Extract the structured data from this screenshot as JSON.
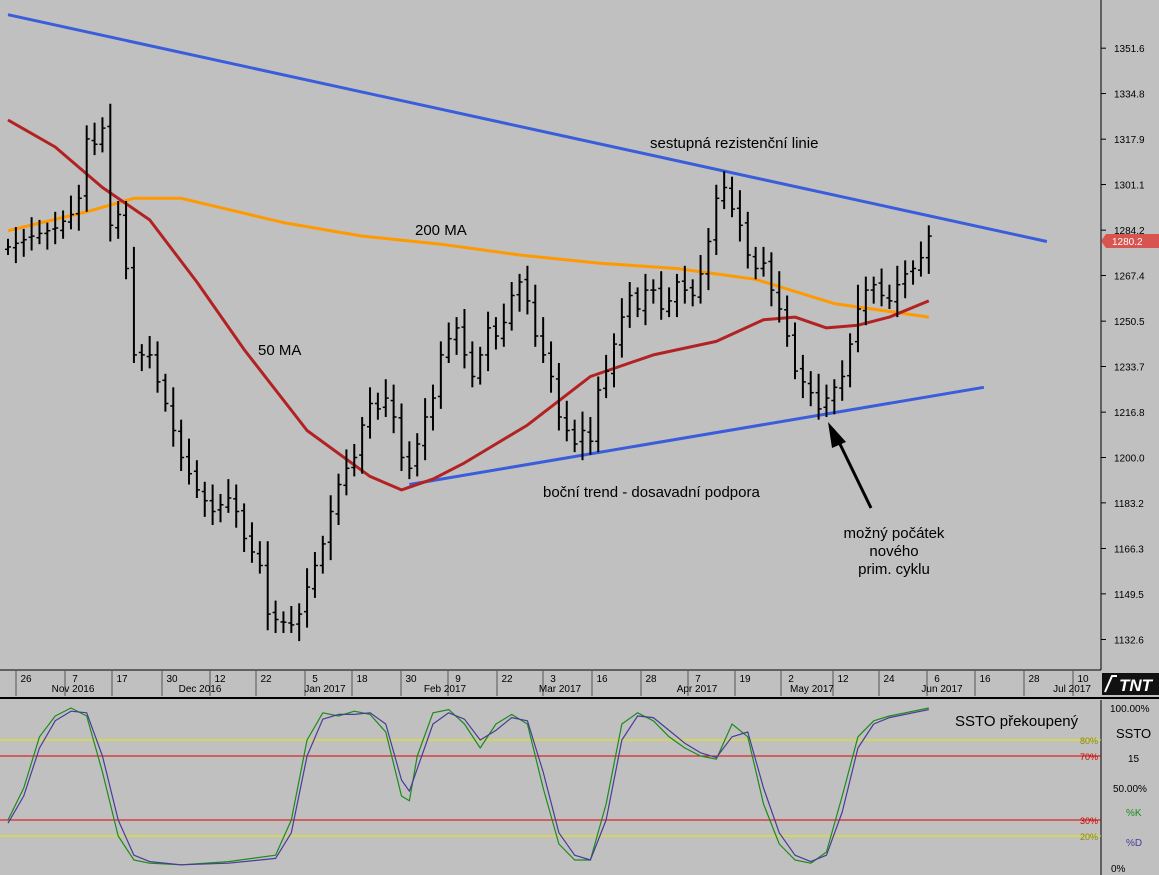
{
  "chart_data": [
    {
      "type": "ohlc",
      "price_axis": {
        "ylim": [
          1125,
          1365
        ],
        "ticks": [
          "1351.6",
          "1334.8",
          "1317.9",
          "1301.1",
          "1284.2",
          "1267.4",
          "1250.5",
          "1233.7",
          "1216.8",
          "1200.0",
          "1183.2",
          "1166.3",
          "1149.5",
          "1132.6"
        ],
        "current_price": "1280.2"
      },
      "time_axis": {
        "day_ticks": [
          "26",
          "7",
          "17",
          "30",
          "12",
          "22",
          "5",
          "18",
          "30",
          "9",
          "22",
          "3",
          "16",
          "28",
          "7",
          "19",
          "2",
          "12",
          "24",
          "6",
          "16",
          "28",
          "10"
        ],
        "month_labels": [
          "Nov 2016",
          "Dec 2016",
          "Jan 2017",
          "Feb 2017",
          "Mar 2017",
          "Apr 2017",
          "May 2017",
          "Jun 2017",
          "Jul 2017"
        ],
        "logo": "TNT"
      },
      "price_path": [
        [
          0,
          1278
        ],
        [
          3,
          1282
        ],
        [
          6,
          1285
        ],
        [
          8,
          1290
        ],
        [
          9,
          1296
        ],
        [
          10,
          1318
        ],
        [
          11,
          1316
        ],
        [
          12,
          1322
        ],
        [
          13,
          1286
        ],
        [
          14,
          1290
        ],
        [
          15,
          1270
        ],
        [
          16,
          1238
        ],
        [
          18,
          1238
        ],
        [
          19,
          1228
        ],
        [
          20,
          1220
        ],
        [
          22,
          1200
        ],
        [
          24,
          1188
        ],
        [
          26,
          1180
        ],
        [
          28,
          1185
        ],
        [
          29,
          1180
        ],
        [
          30,
          1170
        ],
        [
          32,
          1160
        ],
        [
          33,
          1142
        ],
        [
          34,
          1140
        ],
        [
          36,
          1138
        ],
        [
          37,
          1142
        ],
        [
          38,
          1152
        ],
        [
          39,
          1160
        ],
        [
          40,
          1168
        ],
        [
          41,
          1180
        ],
        [
          42,
          1190
        ],
        [
          43,
          1196
        ],
        [
          44,
          1200
        ],
        [
          45,
          1212
        ],
        [
          46,
          1220
        ],
        [
          47,
          1218
        ],
        [
          48,
          1222
        ],
        [
          49,
          1215
        ],
        [
          50,
          1200
        ],
        [
          51,
          1196
        ],
        [
          52,
          1205
        ],
        [
          53,
          1215
        ],
        [
          54,
          1222
        ],
        [
          55,
          1238
        ],
        [
          56,
          1244
        ],
        [
          57,
          1248
        ],
        [
          58,
          1238
        ],
        [
          59,
          1230
        ],
        [
          60,
          1238
        ],
        [
          61,
          1248
        ],
        [
          62,
          1245
        ],
        [
          63,
          1250
        ],
        [
          64,
          1260
        ],
        [
          65,
          1265
        ],
        [
          66,
          1258
        ],
        [
          67,
          1245
        ],
        [
          68,
          1238
        ],
        [
          69,
          1230
        ],
        [
          70,
          1215
        ],
        [
          71,
          1210
        ],
        [
          72,
          1205
        ],
        [
          73,
          1210
        ],
        [
          74,
          1206
        ],
        [
          75,
          1225
        ],
        [
          76,
          1232
        ],
        [
          77,
          1242
        ],
        [
          78,
          1252
        ],
        [
          79,
          1260
        ],
        [
          80,
          1255
        ],
        [
          81,
          1262
        ],
        [
          82,
          1262
        ],
        [
          83,
          1255
        ],
        [
          84,
          1258
        ],
        [
          85,
          1265
        ],
        [
          86,
          1262
        ],
        [
          87,
          1260
        ],
        [
          88,
          1268
        ],
        [
          89,
          1280
        ],
        [
          90,
          1296
        ],
        [
          91,
          1300
        ],
        [
          92,
          1292
        ],
        [
          93,
          1286
        ],
        [
          94,
          1275
        ],
        [
          95,
          1270
        ],
        [
          96,
          1272
        ],
        [
          97,
          1262
        ],
        [
          98,
          1255
        ],
        [
          99,
          1245
        ],
        [
          100,
          1232
        ],
        [
          101,
          1228
        ],
        [
          102,
          1224
        ],
        [
          103,
          1218
        ],
        [
          104,
          1222
        ],
        [
          105,
          1226
        ],
        [
          106,
          1230
        ],
        [
          107,
          1242
        ],
        [
          108,
          1255
        ],
        [
          109,
          1262
        ],
        [
          110,
          1264
        ],
        [
          111,
          1260
        ],
        [
          112,
          1258
        ],
        [
          113,
          1264
        ],
        [
          114,
          1268
        ],
        [
          115,
          1270
        ],
        [
          116,
          1274
        ],
        [
          117,
          1282
        ]
      ],
      "series": [
        {
          "name": "200 MA",
          "color": "#ff9900",
          "x": [
            0,
            10,
            16,
            22,
            35,
            45,
            55,
            65,
            75,
            85,
            95,
            105,
            117
          ],
          "y": [
            1284,
            1291,
            1296,
            1296,
            1287,
            1282,
            1279,
            1275,
            1272,
            1270,
            1266,
            1257,
            1252
          ]
        },
        {
          "name": "50 MA",
          "color": "#b22222",
          "x": [
            0,
            6,
            12,
            18,
            24,
            30,
            38,
            46,
            50,
            54,
            58,
            66,
            74,
            82,
            90,
            96,
            100,
            104,
            108,
            112,
            117
          ],
          "y": [
            1325,
            1315,
            1300,
            1288,
            1265,
            1240,
            1210,
            1193,
            1188,
            1192,
            1198,
            1212,
            1230,
            1238,
            1243,
            1251,
            1252,
            1248,
            1249,
            1252,
            1258
          ]
        }
      ],
      "trendlines": [
        {
          "name": "resistance",
          "color": "#3a5ddb",
          "x": [
            0,
            132
          ],
          "y": [
            1364,
            1280
          ]
        },
        {
          "name": "support",
          "color": "#3a5ddb",
          "x": [
            51,
            124
          ],
          "y": [
            1190,
            1226
          ]
        }
      ],
      "annotations": [
        {
          "text": "sestupná rezistenční linie"
        },
        {
          "text": "200 MA"
        },
        {
          "text": "50 MA"
        },
        {
          "text": "boční trend - dosavadní podpora"
        },
        {
          "lines": [
            "možný počátek",
            "nového",
            "prim. cyklu"
          ]
        }
      ]
    },
    {
      "type": "line",
      "title": "SSTO",
      "period": "15",
      "annotation": "SSTO překoupený",
      "ylim": [
        0,
        100
      ],
      "tick_labels": [
        "100.00%",
        "50.00%",
        "0%"
      ],
      "levels": [
        {
          "label": "80%",
          "value": 80,
          "color": "#e8e800"
        },
        {
          "label": "70%",
          "value": 70,
          "color": "#dd0000"
        },
        {
          "label": "30%",
          "value": 30,
          "color": "#dd0000"
        },
        {
          "label": "20%",
          "value": 20,
          "color": "#e8e800"
        }
      ],
      "series": [
        {
          "name": "%K",
          "color": "#1a8c1a",
          "x": [
            0,
            2,
            4,
            6,
            8,
            10,
            12,
            14,
            16,
            18,
            22,
            28,
            34,
            36,
            38,
            40,
            42,
            44,
            46,
            48,
            50,
            51,
            52,
            54,
            56,
            58,
            60,
            62,
            64,
            66,
            68,
            70,
            72,
            74,
            76,
            78,
            80,
            82,
            84,
            86,
            88,
            90,
            92,
            94,
            96,
            98,
            100,
            102,
            104,
            106,
            108,
            110,
            112,
            114,
            116,
            117
          ],
          "y": [
            30,
            50,
            82,
            95,
            100,
            95,
            60,
            20,
            5,
            3,
            2,
            4,
            8,
            30,
            80,
            97,
            95,
            98,
            96,
            85,
            45,
            42,
            70,
            97,
            99,
            90,
            75,
            90,
            96,
            90,
            50,
            15,
            5,
            5,
            40,
            90,
            97,
            92,
            82,
            75,
            70,
            68,
            90,
            82,
            40,
            15,
            5,
            3,
            10,
            45,
            82,
            92,
            95,
            97,
            99,
            100
          ]
        },
        {
          "name": "%D",
          "color": "#4a3a9a",
          "x": [
            0,
            2,
            4,
            6,
            8,
            10,
            12,
            14,
            16,
            18,
            22,
            28,
            34,
            36,
            38,
            40,
            42,
            44,
            46,
            48,
            50,
            51,
            52,
            54,
            56,
            58,
            60,
            62,
            64,
            66,
            68,
            70,
            72,
            74,
            76,
            78,
            80,
            82,
            84,
            86,
            88,
            90,
            92,
            94,
            96,
            98,
            100,
            102,
            104,
            106,
            108,
            110,
            112,
            114,
            116,
            117
          ],
          "y": [
            28,
            45,
            75,
            92,
            98,
            97,
            70,
            30,
            8,
            4,
            2,
            3,
            6,
            22,
            70,
            93,
            96,
            96,
            97,
            90,
            55,
            48,
            62,
            90,
            97,
            93,
            80,
            86,
            94,
            92,
            60,
            22,
            8,
            5,
            30,
            80,
            95,
            94,
            86,
            78,
            72,
            69,
            82,
            85,
            50,
            22,
            8,
            4,
            8,
            35,
            75,
            90,
            94,
            96,
            98,
            99
          ]
        }
      ]
    }
  ]
}
